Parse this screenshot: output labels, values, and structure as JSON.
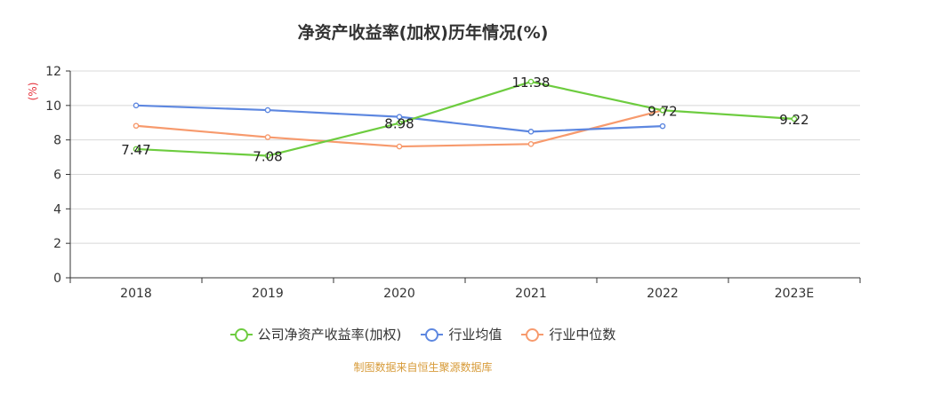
{
  "chart_data": {
    "type": "line",
    "title": "净资产收益率(加权)历年情况(%)",
    "ylabel": "(%)",
    "xlabel": "",
    "categories": [
      "2018",
      "2019",
      "2020",
      "2021",
      "2022",
      "2023E"
    ],
    "ylim": [
      0,
      12
    ],
    "yticks": [
      0,
      2,
      4,
      6,
      8,
      10,
      12
    ],
    "grid": true,
    "legend_position": "bottom",
    "series": [
      {
        "name": "公司净资产收益率(加权)",
        "color": "#6dcc3f",
        "values": [
          7.47,
          7.08,
          8.98,
          11.38,
          9.72,
          9.22
        ],
        "labeled": true
      },
      {
        "name": "行业均值",
        "color": "#5d87e0",
        "values": [
          10.0,
          9.73,
          9.34,
          8.48,
          8.8,
          null
        ],
        "labeled": false
      },
      {
        "name": "行业中位数",
        "color": "#f79a6d",
        "values": [
          8.82,
          8.16,
          7.62,
          7.76,
          9.72,
          null
        ],
        "labeled": false
      }
    ]
  },
  "source_note": "制图数据来自恒生聚源数据库",
  "colors": {
    "source_note": "#d79b39",
    "ylabel": "#e6323c",
    "axis": "#333333",
    "grid": "#d8d8d8"
  }
}
